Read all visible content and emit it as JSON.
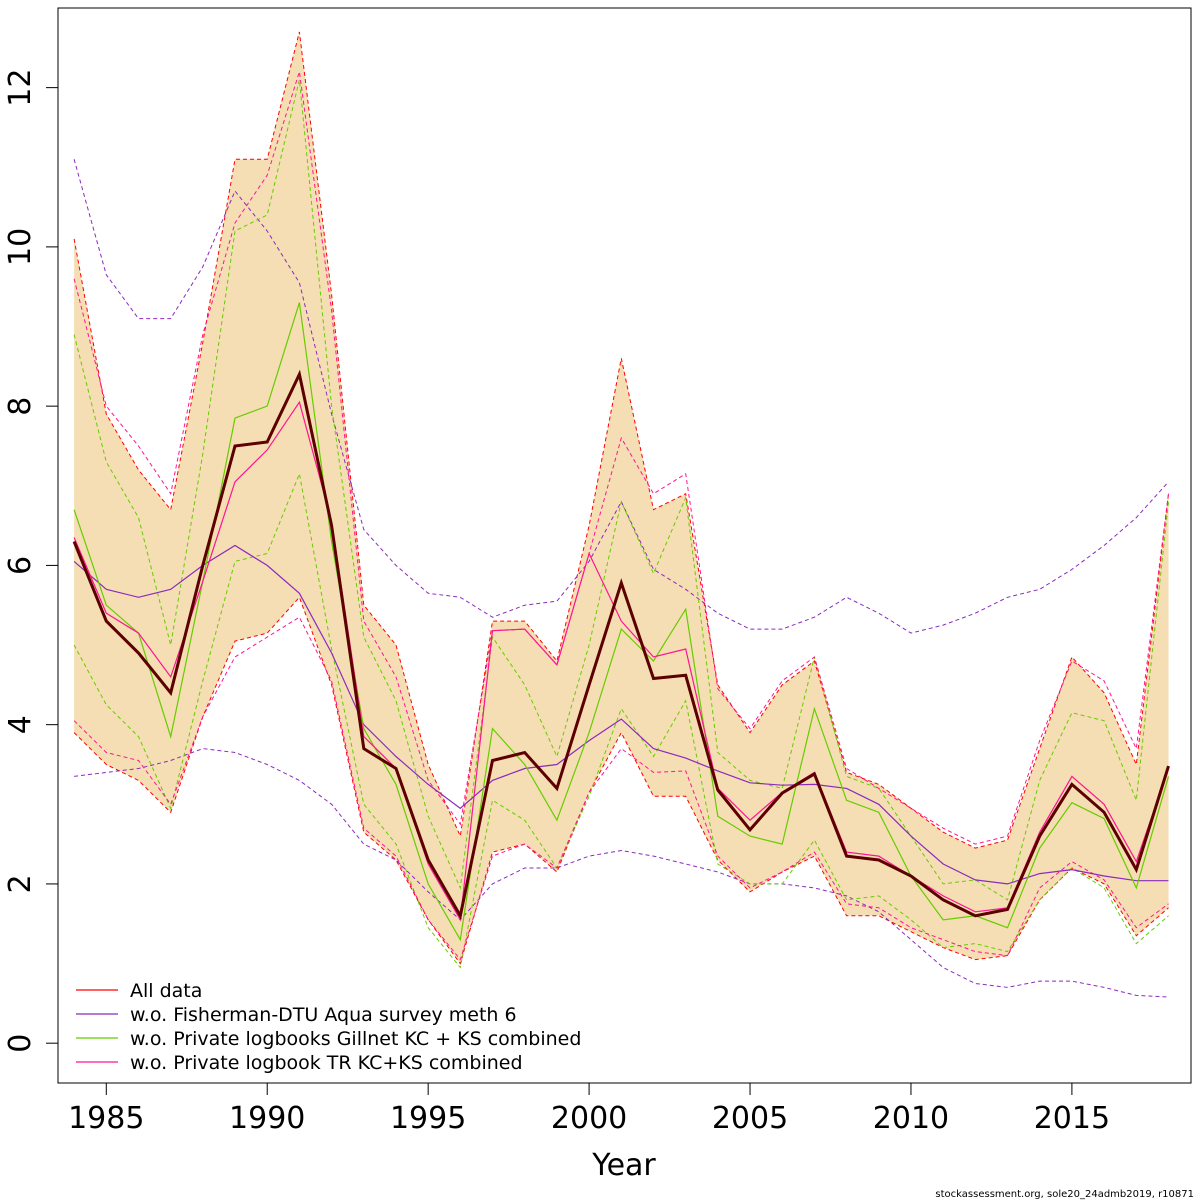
{
  "chart_data": {
    "type": "line",
    "xlabel": "Year",
    "ylabel": "",
    "xlim": [
      1983.5,
      2018.7
    ],
    "ylim": [
      -0.5,
      13.0
    ],
    "x_ticks": [
      1985,
      1990,
      1995,
      2000,
      2005,
      2010,
      2015
    ],
    "y_ticks": [
      0,
      2,
      4,
      6,
      8,
      10,
      12
    ],
    "x": [
      1984,
      1985,
      1986,
      1987,
      1988,
      1989,
      1990,
      1991,
      1992,
      1993,
      1994,
      1995,
      1996,
      1997,
      1998,
      1999,
      2000,
      2001,
      2002,
      2003,
      2004,
      2005,
      2006,
      2007,
      2008,
      2009,
      2010,
      2011,
      2012,
      2013,
      2014,
      2015,
      2016,
      2017,
      2018
    ],
    "band": {
      "color": "#f5deb3",
      "upper": [
        10.1,
        7.9,
        7.2,
        6.7,
        8.8,
        11.1,
        11.1,
        12.7,
        9.4,
        5.5,
        5.0,
        3.5,
        2.6,
        5.3,
        5.3,
        4.8,
        6.5,
        8.6,
        6.7,
        6.9,
        4.5,
        3.9,
        4.5,
        4.8,
        3.4,
        3.25,
        2.95,
        2.65,
        2.45,
        2.55,
        3.7,
        4.85,
        4.4,
        3.5,
        6.9
      ],
      "lower": [
        3.9,
        3.5,
        3.3,
        2.9,
        4.1,
        5.05,
        5.15,
        5.6,
        4.5,
        2.65,
        2.3,
        1.55,
        1.0,
        2.4,
        2.5,
        2.15,
        3.15,
        3.9,
        3.1,
        3.1,
        2.3,
        1.9,
        2.15,
        2.35,
        1.6,
        1.6,
        1.4,
        1.2,
        1.05,
        1.1,
        1.8,
        2.2,
        2.0,
        1.35,
        1.7
      ]
    },
    "series": [
      {
        "name": "All data",
        "color": "#ff0000",
        "values": [
          6.3,
          5.3,
          4.9,
          4.4,
          6.0,
          7.5,
          7.55,
          8.4,
          6.5,
          3.7,
          3.45,
          2.3,
          1.6,
          3.55,
          3.65,
          3.2,
          4.5,
          5.78,
          4.58,
          4.62,
          3.18,
          2.68,
          3.14,
          3.38,
          2.35,
          2.3,
          2.1,
          1.8,
          1.6,
          1.68,
          2.6,
          3.25,
          2.9,
          2.18,
          3.48
        ]
      },
      {
        "name": "w.o. Fisherman-DTU Aqua survey meth 6",
        "color": "#8b2bbd",
        "values": [
          6.05,
          5.7,
          5.6,
          5.7,
          6.0,
          6.25,
          6.0,
          5.65,
          4.9,
          4.0,
          3.6,
          3.25,
          2.95,
          3.3,
          3.45,
          3.5,
          3.8,
          4.07,
          3.7,
          3.58,
          3.42,
          3.27,
          3.24,
          3.25,
          3.2,
          3.0,
          2.6,
          2.25,
          2.05,
          2.0,
          2.13,
          2.18,
          2.1,
          2.04,
          2.04
        ],
        "upper": [
          11.1,
          9.65,
          9.1,
          9.1,
          9.75,
          10.7,
          10.2,
          9.55,
          7.9,
          6.45,
          6.0,
          5.65,
          5.6,
          5.35,
          5.5,
          5.55,
          6.05,
          6.8,
          5.95,
          5.7,
          5.4,
          5.2,
          5.2,
          5.35,
          5.6,
          5.4,
          5.15,
          5.25,
          5.4,
          5.6,
          5.7,
          5.95,
          6.25,
          6.6,
          7.05
        ],
        "lower": [
          3.35,
          3.4,
          3.45,
          3.55,
          3.7,
          3.65,
          3.5,
          3.3,
          3.0,
          2.5,
          2.3,
          1.9,
          1.55,
          2.0,
          2.2,
          2.2,
          2.35,
          2.42,
          2.35,
          2.25,
          2.15,
          2.0,
          2.0,
          1.95,
          1.85,
          1.65,
          1.3,
          0.95,
          0.75,
          0.7,
          0.78,
          0.78,
          0.7,
          0.6,
          0.58
        ]
      },
      {
        "name": "w.o. Private logbooks Gillnet KC + KS combined",
        "color": "#66cc00",
        "values": [
          6.7,
          5.5,
          5.15,
          3.85,
          5.8,
          7.85,
          8.0,
          9.3,
          6.3,
          3.95,
          3.25,
          2.0,
          1.3,
          3.95,
          3.5,
          2.8,
          3.9,
          5.2,
          4.8,
          5.45,
          2.85,
          2.6,
          2.5,
          4.2,
          3.05,
          2.9,
          2.1,
          1.55,
          1.6,
          1.45,
          2.45,
          3.02,
          2.82,
          1.95,
          3.35
        ],
        "upper": [
          8.9,
          7.3,
          6.6,
          5.0,
          7.4,
          10.2,
          10.4,
          12.1,
          8.0,
          5.1,
          4.3,
          2.85,
          1.95,
          5.1,
          4.5,
          3.6,
          5.0,
          6.8,
          5.9,
          6.85,
          3.65,
          3.3,
          3.2,
          4.85,
          3.35,
          3.2,
          2.6,
          2.0,
          2.05,
          1.8,
          3.3,
          4.15,
          4.05,
          3.05,
          6.8
        ],
        "lower": [
          5.0,
          4.25,
          3.85,
          2.95,
          4.55,
          6.05,
          6.15,
          7.15,
          4.95,
          3.0,
          2.5,
          1.45,
          0.95,
          3.05,
          2.8,
          2.2,
          3.1,
          4.2,
          3.6,
          4.3,
          2.25,
          2.0,
          2.0,
          2.55,
          1.8,
          1.85,
          1.55,
          1.2,
          1.25,
          1.15,
          1.8,
          2.2,
          1.95,
          1.25,
          1.6
        ]
      },
      {
        "name": "w.o. Private logbook TR KC+KS combined",
        "color": "#ff1493",
        "values": [
          6.35,
          5.4,
          5.15,
          4.6,
          5.8,
          7.05,
          7.45,
          8.05,
          6.55,
          3.85,
          3.45,
          2.25,
          1.55,
          5.18,
          5.2,
          4.75,
          6.15,
          5.3,
          4.85,
          4.95,
          3.2,
          2.8,
          3.15,
          3.4,
          2.4,
          2.35,
          2.1,
          1.85,
          1.65,
          1.7,
          2.65,
          3.35,
          3.0,
          2.28,
          3.45
        ],
        "upper": [
          9.6,
          8.0,
          7.5,
          6.9,
          8.9,
          10.3,
          10.9,
          12.2,
          9.2,
          5.3,
          4.6,
          3.3,
          2.75,
          5.18,
          5.2,
          4.75,
          6.15,
          7.6,
          6.9,
          7.15,
          4.45,
          3.95,
          4.55,
          4.85,
          3.45,
          3.2,
          2.95,
          2.7,
          2.5,
          2.6,
          3.8,
          4.8,
          4.55,
          3.7,
          6.9
        ],
        "lower": [
          4.05,
          3.65,
          3.55,
          3.0,
          4.1,
          4.85,
          5.1,
          5.35,
          4.55,
          2.7,
          2.35,
          1.55,
          1.05,
          2.35,
          2.5,
          2.2,
          3.15,
          3.7,
          3.4,
          3.42,
          2.35,
          1.95,
          2.15,
          2.4,
          1.75,
          1.7,
          1.45,
          1.3,
          1.15,
          1.1,
          1.95,
          2.28,
          2.05,
          1.45,
          1.75
        ]
      }
    ],
    "main_line": {
      "color": "#5c0000",
      "values": [
        6.3,
        5.3,
        4.9,
        4.4,
        6.0,
        7.5,
        7.55,
        8.4,
        6.5,
        3.7,
        3.45,
        2.3,
        1.6,
        3.55,
        3.65,
        3.2,
        4.5,
        5.78,
        4.58,
        4.62,
        3.18,
        2.68,
        3.14,
        3.38,
        2.35,
        2.3,
        2.1,
        1.8,
        1.6,
        1.68,
        2.6,
        3.25,
        2.9,
        2.18,
        3.48
      ]
    },
    "legend": {
      "placement": "bottom-left",
      "entries": [
        {
          "label": "All data",
          "color": "#ff0000"
        },
        {
          "label": "w.o. Fisherman-DTU Aqua survey meth 6",
          "color": "#8b2bbd"
        },
        {
          "label": "w.o. Private logbooks Gillnet KC + KS combined",
          "color": "#66cc00"
        },
        {
          "label": "w.o. Private logbook TR KC+KS combined",
          "color": "#ff1493"
        }
      ]
    },
    "grid": false,
    "footer": "stockassessment.org, sole20_24admb2019, r10871"
  }
}
